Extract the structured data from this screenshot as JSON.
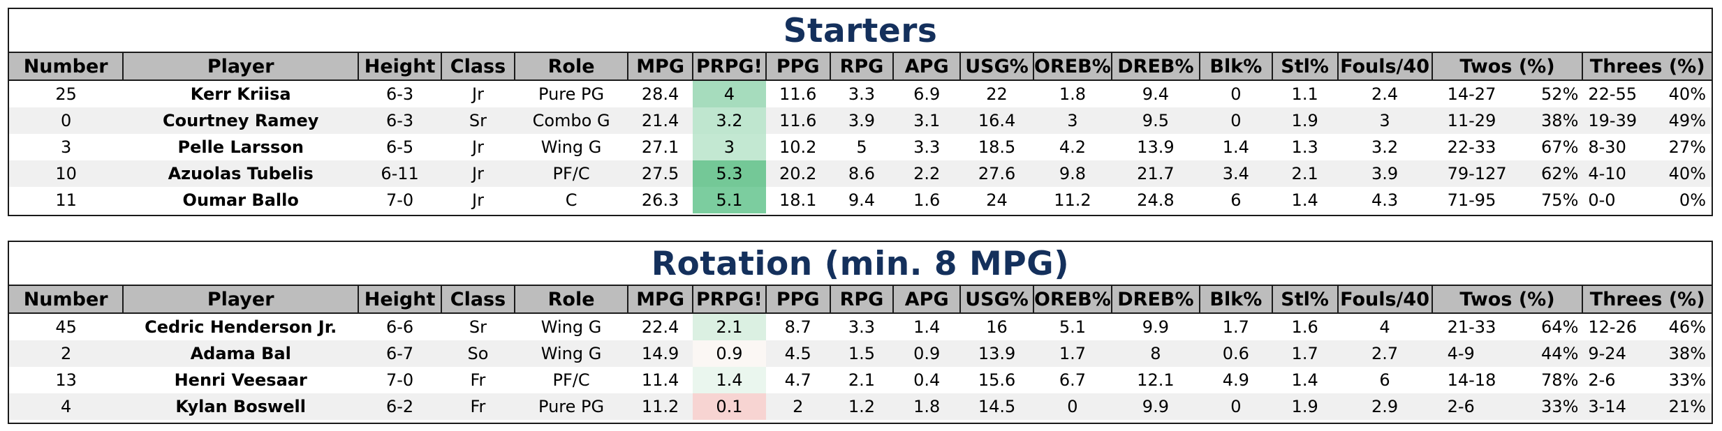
{
  "columns": [
    "Number",
    "Player",
    "Height",
    "Class",
    "Role",
    "MPG",
    "PRPG!",
    "PPG",
    "RPG",
    "APG",
    "USG%",
    "OREB%",
    "DREB%",
    "Blk%",
    "Stl%",
    "Fouls/40",
    "Twos (%)",
    "Threes (%)"
  ],
  "prpg_colors": {
    "strong": "#7ccd9f",
    "medium": "#a6dcbd",
    "light": "#bfe6cf",
    "faint": "#dbf0e2",
    "pale": "#eaf6ee",
    "neutral": "#fbf7f4",
    "negative": "#f7d4d2"
  },
  "title_color": "#14305c",
  "header_bg": "#bdbdbd",
  "tables": [
    {
      "title": "Starters",
      "rows": [
        {
          "number": "25",
          "player": "Kerr Kriisa",
          "height": "6-3",
          "class": "Jr",
          "role": "Pure PG",
          "mpg": "28.4",
          "prpg": "4",
          "prpg_color": "#a6dcbd",
          "ppg": "11.6",
          "rpg": "3.3",
          "apg": "6.9",
          "usg": "22",
          "oreb": "1.8",
          "dreb": "9.4",
          "blk": "0",
          "stl": "1.1",
          "fouls40": "2.4",
          "twos": "14-27",
          "twos_pct": "52%",
          "threes": "22-55",
          "threes_pct": "40%"
        },
        {
          "number": "0",
          "player": "Courtney Ramey",
          "height": "6-3",
          "class": "Sr",
          "role": "Combo G",
          "mpg": "21.4",
          "prpg": "3.2",
          "prpg_color": "#bfe6cf",
          "ppg": "11.6",
          "rpg": "3.9",
          "apg": "3.1",
          "usg": "16.4",
          "oreb": "3",
          "dreb": "9.5",
          "blk": "0",
          "stl": "1.9",
          "fouls40": "3",
          "twos": "11-29",
          "twos_pct": "38%",
          "threes": "19-39",
          "threes_pct": "49%"
        },
        {
          "number": "3",
          "player": "Pelle Larsson",
          "height": "6-5",
          "class": "Jr",
          "role": "Wing G",
          "mpg": "27.1",
          "prpg": "3",
          "prpg_color": "#c3e8d2",
          "ppg": "10.2",
          "rpg": "5",
          "apg": "3.3",
          "usg": "18.5",
          "oreb": "4.2",
          "dreb": "13.9",
          "blk": "1.4",
          "stl": "1.3",
          "fouls40": "3.2",
          "twos": "22-33",
          "twos_pct": "67%",
          "threes": "8-30",
          "threes_pct": "27%"
        },
        {
          "number": "10",
          "player": "Azuolas Tubelis",
          "height": "6-11",
          "class": "Jr",
          "role": "PF/C",
          "mpg": "27.5",
          "prpg": "5.3",
          "prpg_color": "#74c897",
          "ppg": "20.2",
          "rpg": "8.6",
          "apg": "2.2",
          "usg": "27.6",
          "oreb": "9.8",
          "dreb": "21.7",
          "blk": "3.4",
          "stl": "2.1",
          "fouls40": "3.9",
          "twos": "79-127",
          "twos_pct": "62%",
          "threes": "4-10",
          "threes_pct": "40%"
        },
        {
          "number": "11",
          "player": "Oumar Ballo",
          "height": "7-0",
          "class": "Jr",
          "role": "C",
          "mpg": "26.3",
          "prpg": "5.1",
          "prpg_color": "#7ccd9f",
          "ppg": "18.1",
          "rpg": "9.4",
          "apg": "1.6",
          "usg": "24",
          "oreb": "11.2",
          "dreb": "24.8",
          "blk": "6",
          "stl": "1.4",
          "fouls40": "4.3",
          "twos": "71-95",
          "twos_pct": "75%",
          "threes": "0-0",
          "threes_pct": "0%"
        }
      ]
    },
    {
      "title": "Rotation (min. 8 MPG)",
      "rows": [
        {
          "number": "45",
          "player": "Cedric Henderson Jr.",
          "height": "6-6",
          "class": "Sr",
          "role": "Wing G",
          "mpg": "22.4",
          "prpg": "2.1",
          "prpg_color": "#dbf0e2",
          "ppg": "8.7",
          "rpg": "3.3",
          "apg": "1.4",
          "usg": "16",
          "oreb": "5.1",
          "dreb": "9.9",
          "blk": "1.7",
          "stl": "1.6",
          "fouls40": "4",
          "twos": "21-33",
          "twos_pct": "64%",
          "threes": "12-26",
          "threes_pct": "46%"
        },
        {
          "number": "2",
          "player": "Adama Bal",
          "height": "6-7",
          "class": "So",
          "role": "Wing G",
          "mpg": "14.9",
          "prpg": "0.9",
          "prpg_color": "#fbf7f4",
          "ppg": "4.5",
          "rpg": "1.5",
          "apg": "0.9",
          "usg": "13.9",
          "oreb": "1.7",
          "dreb": "8",
          "blk": "0.6",
          "stl": "1.7",
          "fouls40": "2.7",
          "twos": "4-9",
          "twos_pct": "44%",
          "threes": "9-24",
          "threes_pct": "38%"
        },
        {
          "number": "13",
          "player": "Henri Veesaar",
          "height": "7-0",
          "class": "Fr",
          "role": "PF/C",
          "mpg": "11.4",
          "prpg": "1.4",
          "prpg_color": "#eaf6ee",
          "ppg": "4.7",
          "rpg": "2.1",
          "apg": "0.4",
          "usg": "15.6",
          "oreb": "6.7",
          "dreb": "12.1",
          "blk": "4.9",
          "stl": "1.4",
          "fouls40": "6",
          "twos": "14-18",
          "twos_pct": "78%",
          "threes": "2-6",
          "threes_pct": "33%"
        },
        {
          "number": "4",
          "player": "Kylan Boswell",
          "height": "6-2",
          "class": "Fr",
          "role": "Pure PG",
          "mpg": "11.2",
          "prpg": "0.1",
          "prpg_color": "#f7d4d2",
          "ppg": "2",
          "rpg": "1.2",
          "apg": "1.8",
          "usg": "14.5",
          "oreb": "0",
          "dreb": "9.9",
          "blk": "0",
          "stl": "1.9",
          "fouls40": "2.9",
          "twos": "2-6",
          "twos_pct": "33%",
          "threes": "3-14",
          "threes_pct": "21%"
        }
      ]
    }
  ]
}
